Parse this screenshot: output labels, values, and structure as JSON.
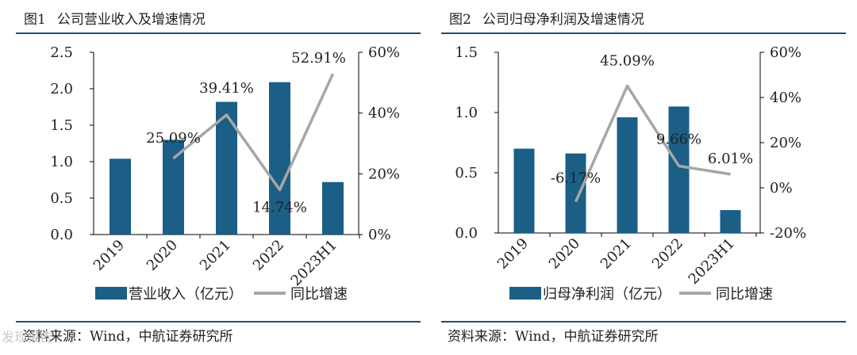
{
  "colors": {
    "bar": "#1b5e86",
    "line": "#a6a6a6",
    "rule": "#1f4e79",
    "text": "#222222"
  },
  "watermark": "发现报告",
  "chart_data": [
    {
      "type": "bar+line",
      "figure_no": "图1",
      "title": "公司营业收入及增速情况",
      "categories": [
        "2019",
        "2020",
        "2021",
        "2022",
        "2023H1"
      ],
      "series": [
        {
          "name": "营业收入（亿元）",
          "type": "bar",
          "axis": "left",
          "values": [
            1.04,
            1.3,
            1.82,
            2.09,
            0.72
          ]
        },
        {
          "name": "同比增速",
          "type": "line",
          "axis": "right",
          "values": [
            null,
            25.09,
            39.41,
            14.74,
            52.91
          ],
          "labels": [
            null,
            "25.09%",
            "39.41%",
            "14.74%",
            "52.91%"
          ]
        }
      ],
      "left_axis": {
        "min": 0,
        "max": 2.5,
        "ticks": [
          "0.0",
          "0.5",
          "1.0",
          "1.5",
          "2.0",
          "2.5"
        ]
      },
      "right_axis": {
        "min": 0,
        "max": 60,
        "ticks": [
          "0%",
          "20%",
          "40%",
          "60%"
        ]
      },
      "source": "资料来源：Wind，中航证券研究所"
    },
    {
      "type": "bar+line",
      "figure_no": "图2",
      "title": "公司归母净利润及增速情况",
      "categories": [
        "2019",
        "2020",
        "2021",
        "2022",
        "2023H1"
      ],
      "series": [
        {
          "name": "归母净利润（亿元）",
          "type": "bar",
          "axis": "left",
          "values": [
            0.7,
            0.66,
            0.96,
            1.05,
            0.19
          ]
        },
        {
          "name": "同比增速",
          "type": "line",
          "axis": "right",
          "values": [
            null,
            -6.17,
            45.09,
            9.66,
            6.01
          ],
          "labels": [
            null,
            "-6.17%",
            "45.09%",
            "9.66%",
            "6.01%"
          ]
        }
      ],
      "left_axis": {
        "min": 0,
        "max": 1.5,
        "ticks": [
          "0.0",
          "0.5",
          "1.0",
          "1.5"
        ]
      },
      "right_axis": {
        "min": -20,
        "max": 60,
        "ticks": [
          "-20%",
          "0%",
          "20%",
          "40%",
          "60%"
        ]
      },
      "source": "资料来源：Wind，中航证券研究所"
    }
  ]
}
